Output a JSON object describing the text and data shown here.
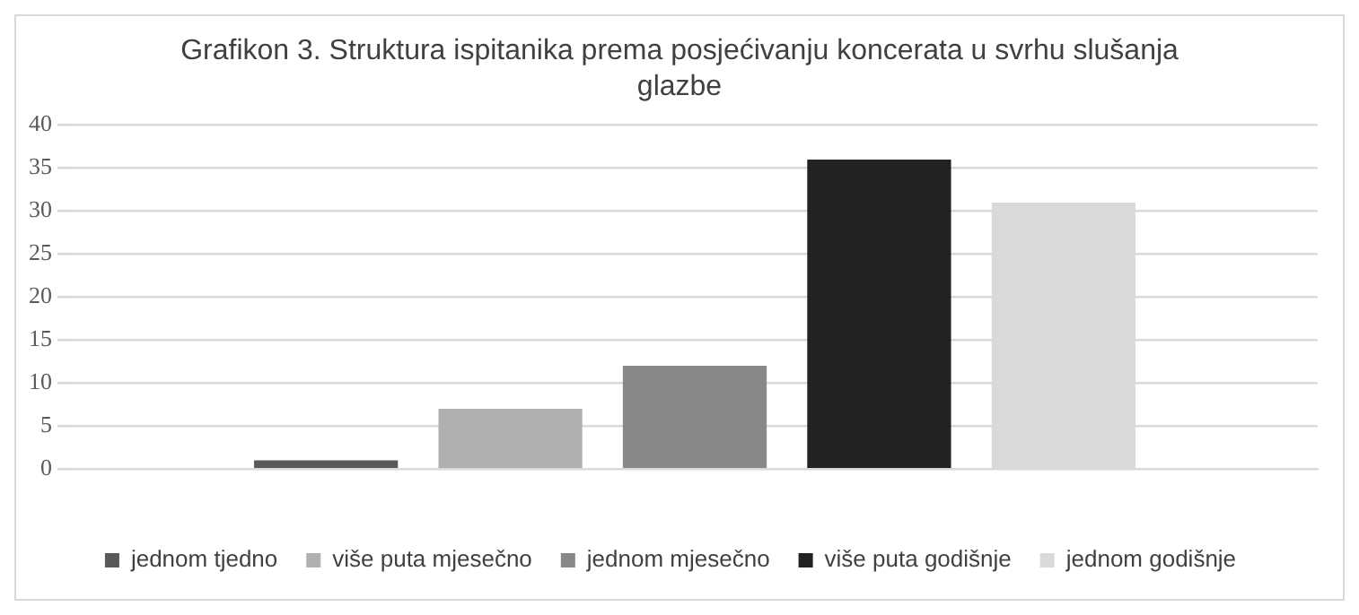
{
  "chart_data": {
    "type": "bar",
    "title": "Grafikon 3. Struktura ispitanika prema posjećivanju koncerata u svrhu slušanja glazbe",
    "categories": [
      null
    ],
    "series": [
      {
        "name": "jednom tjedno",
        "color": "#595959",
        "values": [
          1
        ]
      },
      {
        "name": "više puta mjesečno",
        "color": "#b0b0b0",
        "values": [
          7
        ]
      },
      {
        "name": "jednom mjesečno",
        "color": "#888888",
        "values": [
          12
        ]
      },
      {
        "name": "više puta godišnje",
        "color": "#222222",
        "values": [
          36
        ]
      },
      {
        "name": "jednom godišnje",
        "color": "#d9d9d9",
        "values": [
          31
        ]
      }
    ],
    "ylim": [
      0,
      40
    ],
    "yticks": [
      0,
      5,
      10,
      15,
      20,
      25,
      30,
      35,
      40
    ],
    "grid": "y",
    "legend": "bottom"
  }
}
